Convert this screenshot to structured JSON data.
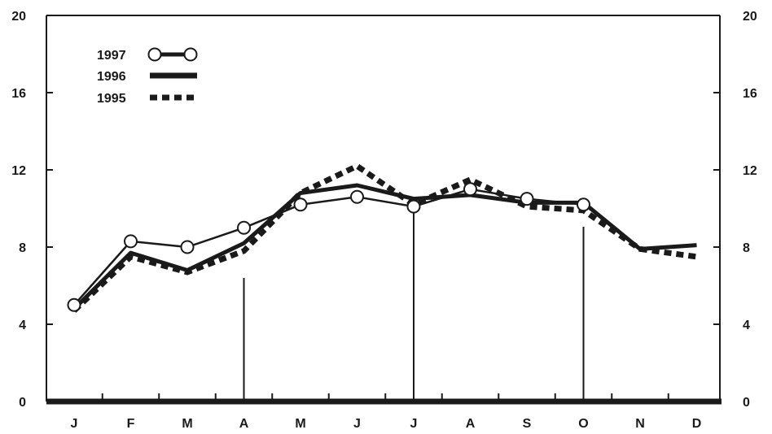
{
  "chart_data": {
    "type": "line",
    "categories": [
      "J",
      "F",
      "M",
      "A",
      "M",
      "J",
      "J",
      "A",
      "S",
      "O",
      "N",
      "D"
    ],
    "ylim": [
      0,
      20
    ],
    "yticks": [
      0,
      4,
      8,
      12,
      16,
      20
    ],
    "y_axis_sides": "both",
    "grid": false,
    "legend_position": "top-left",
    "vertical_markers_between": [
      [
        3,
        4
      ],
      [
        6,
        7
      ],
      [
        9,
        10
      ]
    ],
    "series": [
      {
        "name": "1997",
        "style": "line-open-circles",
        "values": [
          5.0,
          8.3,
          8.0,
          9.0,
          10.2,
          10.6,
          10.1,
          11.0,
          10.5,
          10.2,
          null,
          null
        ]
      },
      {
        "name": "1996",
        "style": "solid-thick",
        "values": [
          4.8,
          7.7,
          6.8,
          8.2,
          10.8,
          11.2,
          10.5,
          10.7,
          10.3,
          10.3,
          7.9,
          8.1
        ]
      },
      {
        "name": "1995",
        "style": "dotted-thick",
        "values": [
          4.7,
          7.5,
          6.7,
          7.8,
          10.8,
          12.2,
          10.2,
          11.5,
          10.1,
          9.9,
          7.9,
          7.5
        ]
      }
    ],
    "colors": {
      "ink": "#1a1a1a",
      "marker_fill": "#ffffff",
      "background": "#ffffff"
    }
  }
}
